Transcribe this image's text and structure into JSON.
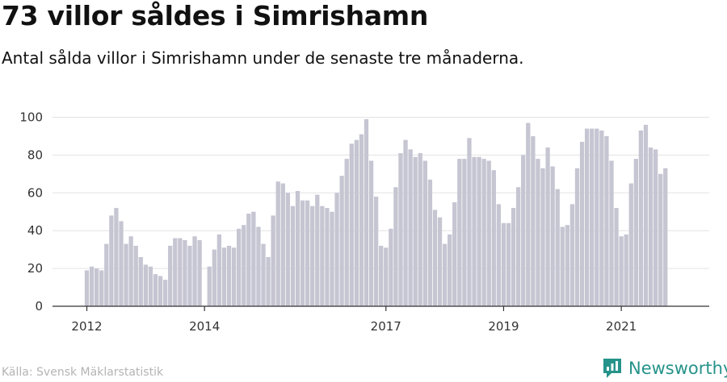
{
  "header": {
    "title": "73 villor såldes i Simrishamn",
    "subtitle": "Antal sålda villor i Simrishamn under de senaste tre månaderna."
  },
  "footer": {
    "source": "Källa: Svensk Mäklarstatistik",
    "brand": "Newsworthy",
    "brand_icon": "newsworthy-logo-icon"
  },
  "colors": {
    "bar": "#c6c5d2",
    "highlight": "#1a9990",
    "axis": "#333333",
    "grid": "#e3e3e3",
    "brand": "#25938a"
  },
  "chart_data": {
    "type": "bar",
    "title": "",
    "xlabel": "",
    "ylabel": "",
    "ylim": [
      0,
      100
    ],
    "yticks": [
      0,
      20,
      40,
      60,
      80,
      100
    ],
    "grid": true,
    "x_tick_labels": [
      {
        "label": "2012",
        "index": 0
      },
      {
        "label": "2014",
        "index": 24
      },
      {
        "label": "2017",
        "index": 61
      },
      {
        "label": "2019",
        "index": 85
      },
      {
        "label": "2021",
        "index": 109
      }
    ],
    "values": [
      19,
      21,
      20,
      19,
      33,
      48,
      52,
      45,
      33,
      37,
      32,
      26,
      22,
      21,
      17,
      16,
      14,
      32,
      36,
      36,
      35,
      32,
      37,
      35,
      0,
      21,
      30,
      38,
      31,
      32,
      31,
      41,
      43,
      49,
      50,
      42,
      33,
      26,
      48,
      66,
      65,
      60,
      53,
      61,
      56,
      56,
      53,
      59,
      53,
      52,
      50,
      60,
      69,
      78,
      86,
      88,
      91,
      99,
      77,
      58,
      32,
      31,
      41,
      63,
      81,
      88,
      83,
      79,
      81,
      77,
      67,
      51,
      47,
      33,
      38,
      55,
      78,
      78,
      89,
      79,
      79,
      78,
      77,
      72,
      54,
      44,
      44,
      52,
      63,
      80,
      97,
      90,
      78,
      73,
      84,
      74,
      62,
      42,
      43,
      54,
      73,
      87,
      94,
      94,
      94,
      93,
      90,
      77,
      52,
      37,
      38,
      65,
      78,
      93,
      96,
      84,
      83,
      70,
      73
    ],
    "highlight_index": 120,
    "annotation": {
      "text": "73",
      "index": 120
    }
  }
}
